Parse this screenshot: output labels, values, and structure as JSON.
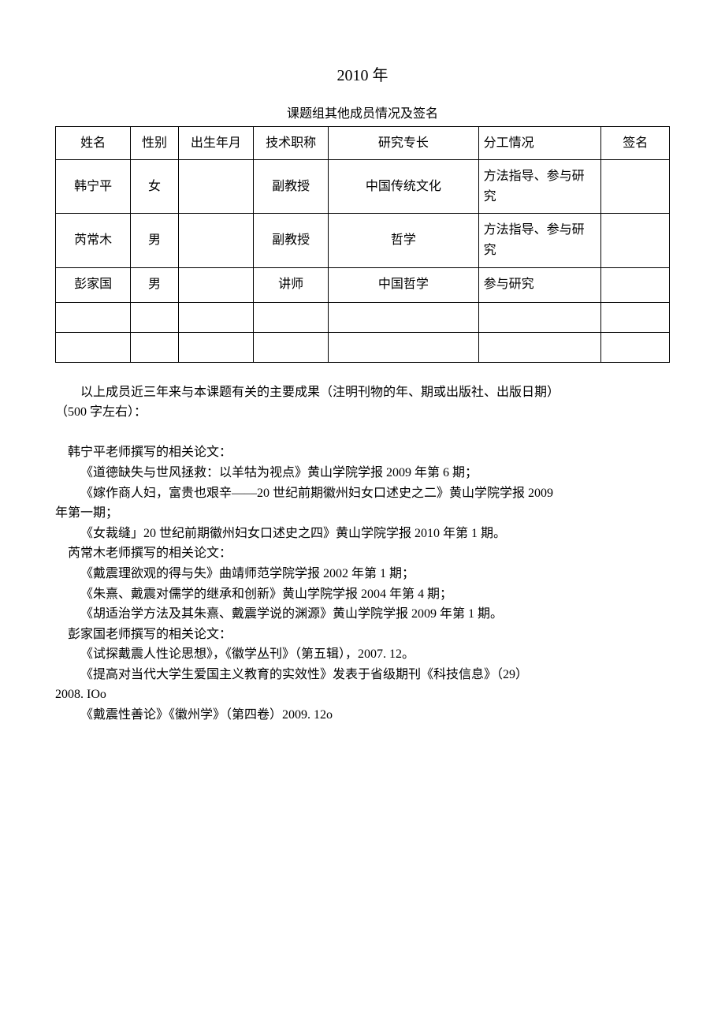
{
  "page": {
    "year_title": "2010 年",
    "table_caption": "课题组其他成员情况及签名"
  },
  "table": {
    "headers": {
      "name": "姓名",
      "gender": "性别",
      "birth": "出生年月",
      "title": "技术职称",
      "specialty": "研究专长",
      "division": "分工情况",
      "signature": "签名"
    },
    "rows": [
      {
        "name": "韩宁平",
        "gender": "女",
        "birth": "",
        "title": "副教授",
        "specialty": "中国传统文化",
        "division": "方法指导、参与研究",
        "signature": ""
      },
      {
        "name": "芮常木",
        "gender": "男",
        "birth": "",
        "title": "副教授",
        "specialty": "哲学",
        "division": "方法指导、参与研究",
        "signature": ""
      },
      {
        "name": "彭家国",
        "gender": "男",
        "birth": "",
        "title": "讲师",
        "specialty": "中国哲学",
        "division": "参与研究",
        "signature": ""
      }
    ]
  },
  "body": {
    "intro1": "以上成员近三年来与本课题有关的主要成果（注明刊物的年、期或出版社、出版日期）",
    "intro2": "（500 字左右）：",
    "han_header": "韩宁平老师撰写的相关论文：",
    "han_p1": "《道德缺失与世风拯救：以羊牯为视点》黄山学院学报 2009 年第 6 期；",
    "han_p2": "《嫁作商人妇，富贵也艰辛——20 世纪前期徽州妇女口述史之二》黄山学院学报 2009",
    "han_p2b": "年第一期；",
    "han_p3": "《女裁缝」20 世纪前期徽州妇女口述史之四》黄山学院学报 2010 年第 1 期。",
    "rui_header": "芮常木老师撰写的相关论文：",
    "rui_p1": "《戴震理欲观的得与失》曲靖师范学院学报 2002 年第 1 期；",
    "rui_p2": "《朱熹、戴震对儒学的继承和创新》黄山学院学报 2004 年第 4 期；",
    "rui_p3": "《胡适治学方法及其朱熹、戴震学说的渊源》黄山学院学报 2009 年第 1 期。",
    "peng_header": "彭家国老师撰写的相关论文：",
    "peng_p1": "《试探戴震人性论思想》，《徽学丛刊》（第五辑），2007. 12。",
    "peng_p2": "《提高对当代大学生爱国主义教育的实效性》发表于省级期刊《科技信息》（29）",
    "peng_p2b": "2008. IOo",
    "peng_p3": "《戴震性善论》《徽州学》（第四卷）2009. 12o"
  },
  "styles": {
    "background_color": "#ffffff",
    "text_color": "#000000",
    "border_color": "#000000",
    "body_fontsize": 16,
    "title_fontsize": 20
  }
}
